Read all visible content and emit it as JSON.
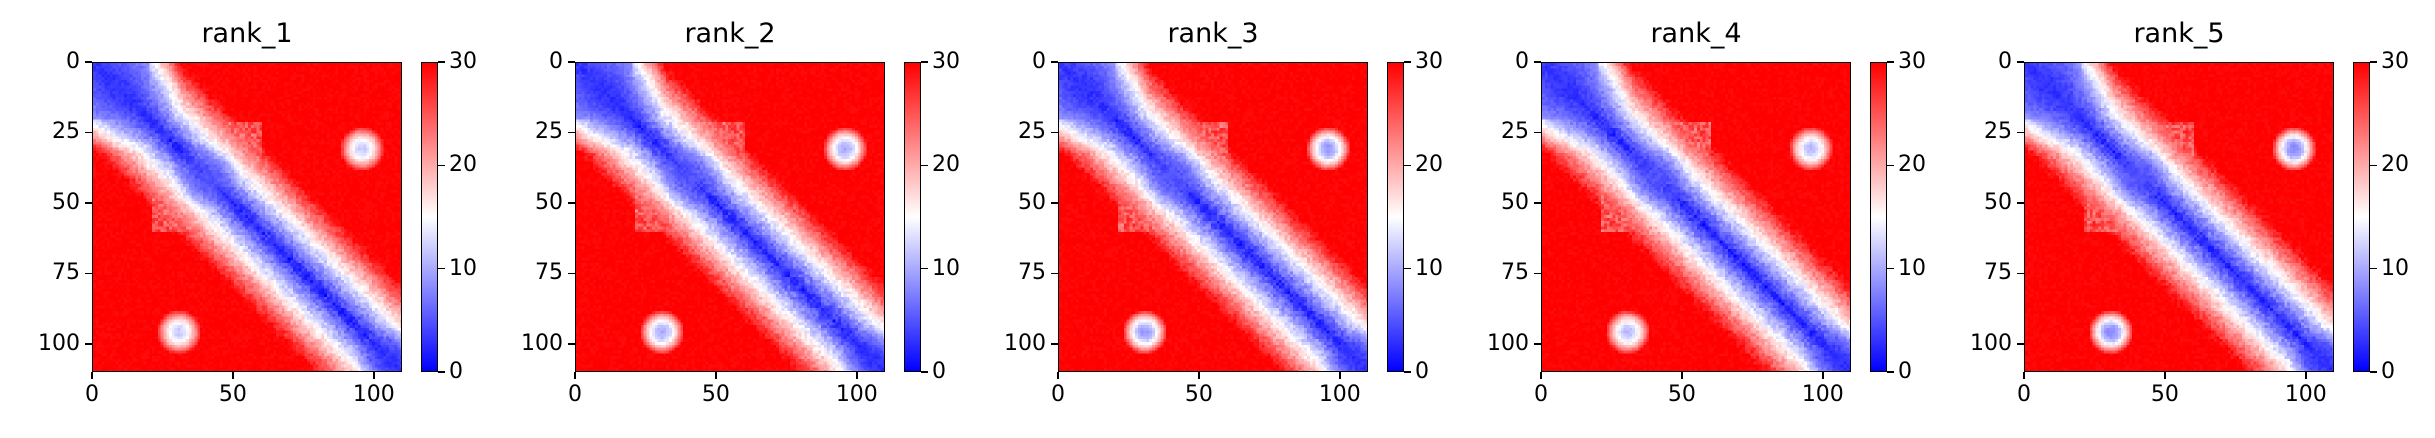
{
  "chart_data": [
    {
      "type": "heatmap",
      "title": "rank_1",
      "x_ticks": [
        "0",
        "50",
        "100"
      ],
      "y_ticks": [
        "0",
        "25",
        "50",
        "75",
        "100"
      ],
      "colorbar_ticks": [
        "0",
        "10",
        "20",
        "30"
      ],
      "xlim": [
        0,
        110
      ],
      "ylim": [
        110,
        0
      ],
      "clim": [
        0,
        30
      ],
      "colormap": "bwr",
      "features": [
        {
          "i": 8,
          "j": 8,
          "r": 12,
          "v": 3
        },
        {
          "i": 40,
          "j": 40,
          "r": 6,
          "v": 5
        },
        {
          "i": 95,
          "j": 30,
          "r": 4,
          "v": 12
        },
        {
          "i": 30,
          "j": 95,
          "r": 4,
          "v": 12
        },
        {
          "i": 105,
          "j": 105,
          "r": 6,
          "v": 3
        }
      ]
    },
    {
      "type": "heatmap",
      "title": "rank_2",
      "x_ticks": [
        "0",
        "50",
        "100"
      ],
      "y_ticks": [
        "0",
        "25",
        "50",
        "75",
        "100"
      ],
      "colorbar_ticks": [
        "0",
        "10",
        "20",
        "30"
      ],
      "xlim": [
        0,
        110
      ],
      "ylim": [
        110,
        0
      ],
      "clim": [
        0,
        30
      ],
      "colormap": "bwr",
      "features": [
        {
          "i": 8,
          "j": 8,
          "r": 12,
          "v": 3
        },
        {
          "i": 40,
          "j": 40,
          "r": 6,
          "v": 5
        },
        {
          "i": 95,
          "j": 30,
          "r": 4,
          "v": 10
        },
        {
          "i": 30,
          "j": 95,
          "r": 4,
          "v": 10
        },
        {
          "i": 105,
          "j": 105,
          "r": 6,
          "v": 3
        }
      ]
    },
    {
      "type": "heatmap",
      "title": "rank_3",
      "x_ticks": [
        "0",
        "50",
        "100"
      ],
      "y_ticks": [
        "0",
        "25",
        "50",
        "75",
        "100"
      ],
      "colorbar_ticks": [
        "0",
        "10",
        "20",
        "30"
      ],
      "xlim": [
        0,
        110
      ],
      "ylim": [
        110,
        0
      ],
      "clim": [
        0,
        30
      ],
      "colormap": "bwr",
      "features": [
        {
          "i": 8,
          "j": 8,
          "r": 12,
          "v": 3
        },
        {
          "i": 40,
          "j": 40,
          "r": 6,
          "v": 5
        },
        {
          "i": 95,
          "j": 30,
          "r": 4,
          "v": 9
        },
        {
          "i": 30,
          "j": 95,
          "r": 4,
          "v": 9
        },
        {
          "i": 105,
          "j": 105,
          "r": 6,
          "v": 3
        }
      ]
    },
    {
      "type": "heatmap",
      "title": "rank_4",
      "x_ticks": [
        "0",
        "50",
        "100"
      ],
      "y_ticks": [
        "0",
        "25",
        "50",
        "75",
        "100"
      ],
      "colorbar_ticks": [
        "0",
        "10",
        "20",
        "30"
      ],
      "xlim": [
        0,
        110
      ],
      "ylim": [
        110,
        0
      ],
      "clim": [
        0,
        30
      ],
      "colormap": "bwr",
      "features": [
        {
          "i": 8,
          "j": 8,
          "r": 12,
          "v": 3
        },
        {
          "i": 40,
          "j": 40,
          "r": 6,
          "v": 5
        },
        {
          "i": 95,
          "j": 30,
          "r": 4,
          "v": 11
        },
        {
          "i": 30,
          "j": 95,
          "r": 4,
          "v": 11
        },
        {
          "i": 105,
          "j": 105,
          "r": 6,
          "v": 3
        }
      ]
    },
    {
      "type": "heatmap",
      "title": "rank_5",
      "x_ticks": [
        "0",
        "50",
        "100"
      ],
      "y_ticks": [
        "0",
        "25",
        "50",
        "75",
        "100"
      ],
      "colorbar_ticks": [
        "0",
        "10",
        "20",
        "30"
      ],
      "xlim": [
        0,
        110
      ],
      "ylim": [
        110,
        0
      ],
      "clim": [
        0,
        30
      ],
      "colormap": "bwr",
      "features": [
        {
          "i": 8,
          "j": 8,
          "r": 12,
          "v": 3
        },
        {
          "i": 40,
          "j": 40,
          "r": 6,
          "v": 5
        },
        {
          "i": 95,
          "j": 30,
          "r": 4,
          "v": 8
        },
        {
          "i": 30,
          "j": 95,
          "r": 4,
          "v": 8
        },
        {
          "i": 105,
          "j": 105,
          "r": 6,
          "v": 3
        }
      ]
    }
  ],
  "colors": {
    "low": "#0000ff",
    "mid": "#ffffff",
    "high": "#ff0000"
  }
}
